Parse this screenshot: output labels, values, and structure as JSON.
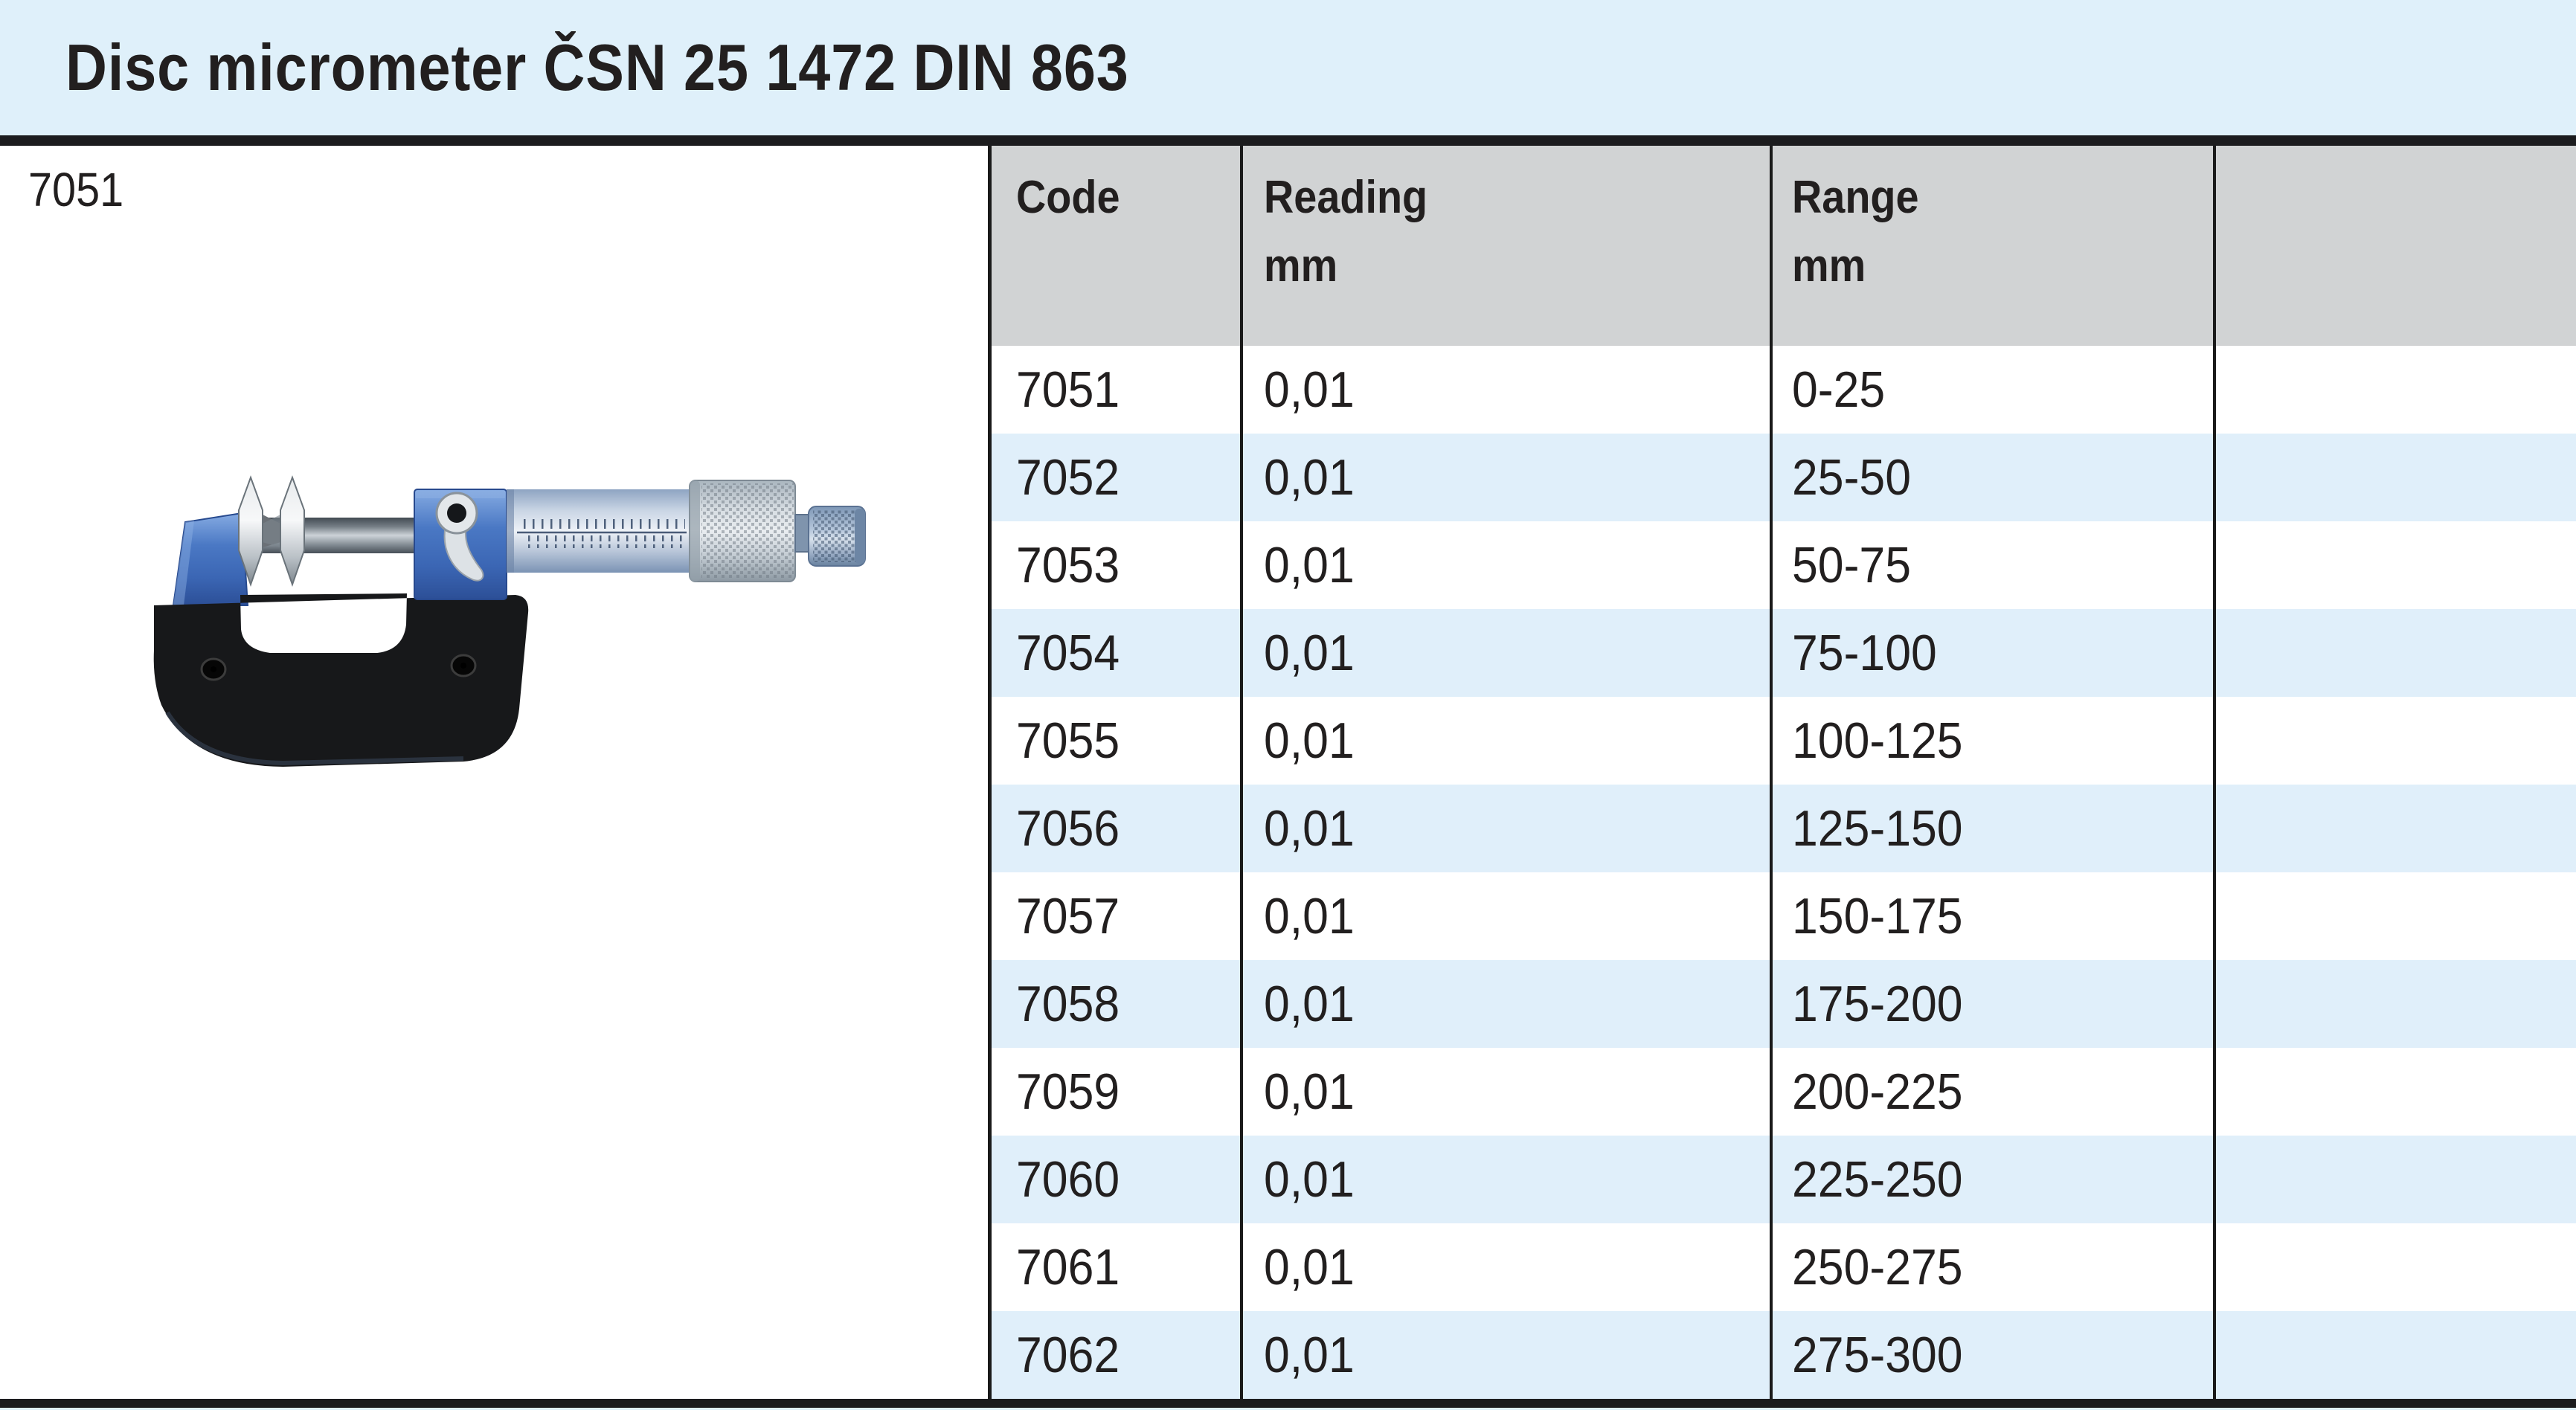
{
  "page": {
    "title": "Disc micrometer ČSN 25 1472 DIN 863"
  },
  "figure": {
    "label": "7051",
    "image": "disc-micrometer-photo"
  },
  "colors": {
    "title_band_blue": "#dff0fa",
    "row_alt_blue": "#e0effa",
    "header_gray": "#d1d3d4",
    "rule_black": "#1c1c1e",
    "text": "#221f1f",
    "micrometer_blue": "#4a78c4",
    "micrometer_frame_black": "#17181a"
  },
  "table": {
    "headers": [
      {
        "line1": "Code",
        "line2": ""
      },
      {
        "line1": "Reading",
        "line2": "mm"
      },
      {
        "line1": "Range",
        "line2": "mm"
      },
      {
        "line1": "",
        "line2": ""
      }
    ],
    "rows": [
      {
        "code": "7051",
        "reading": "0,01",
        "range": "0-25",
        "empty": ""
      },
      {
        "code": "7052",
        "reading": "0,01",
        "range": "25-50",
        "empty": ""
      },
      {
        "code": "7053",
        "reading": "0,01",
        "range": "50-75",
        "empty": ""
      },
      {
        "code": "7054",
        "reading": "0,01",
        "range": "75-100",
        "empty": ""
      },
      {
        "code": "7055",
        "reading": "0,01",
        "range": "100-125",
        "empty": ""
      },
      {
        "code": "7056",
        "reading": "0,01",
        "range": "125-150",
        "empty": ""
      },
      {
        "code": "7057",
        "reading": "0,01",
        "range": "150-175",
        "empty": ""
      },
      {
        "code": "7058",
        "reading": "0,01",
        "range": "175-200",
        "empty": ""
      },
      {
        "code": "7059",
        "reading": "0,01",
        "range": "200-225",
        "empty": ""
      },
      {
        "code": "7060",
        "reading": "0,01",
        "range": "225-250",
        "empty": ""
      },
      {
        "code": "7061",
        "reading": "0,01",
        "range": "250-275",
        "empty": ""
      },
      {
        "code": "7062",
        "reading": "0,01",
        "range": "275-300",
        "empty": ""
      }
    ]
  }
}
